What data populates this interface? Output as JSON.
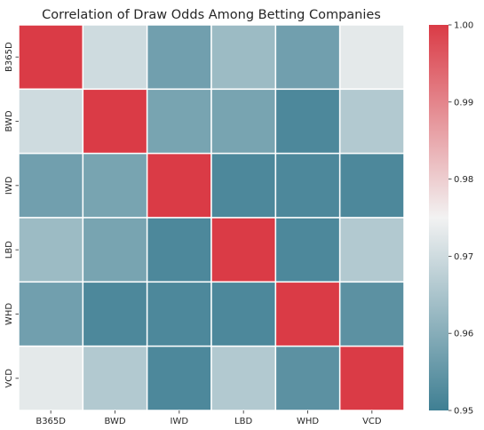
{
  "chart_data": {
    "type": "heatmap",
    "title": "Correlation of Draw Odds Among Betting Companies",
    "xlabel": "",
    "ylabel": "",
    "x_categories": [
      "B365D",
      "BWD",
      "IWD",
      "LBD",
      "WHD",
      "VCD"
    ],
    "y_categories": [
      "B365D",
      "BWD",
      "IWD",
      "LBD",
      "WHD",
      "VCD"
    ],
    "values": [
      [
        1.0,
        0.97,
        0.957,
        0.963,
        0.957,
        0.973
      ],
      [
        0.97,
        1.0,
        0.958,
        0.958,
        0.952,
        0.966
      ],
      [
        0.957,
        0.958,
        1.0,
        0.952,
        0.952,
        0.952
      ],
      [
        0.963,
        0.958,
        0.952,
        1.0,
        0.952,
        0.966
      ],
      [
        0.957,
        0.952,
        0.952,
        0.952,
        1.0,
        0.954
      ],
      [
        0.973,
        0.966,
        0.952,
        0.966,
        0.954,
        1.0
      ]
    ],
    "colorbar": {
      "vmin": 0.95,
      "vmax": 1.0,
      "ticks": [
        "0.95",
        "0.96",
        "0.97",
        "0.98",
        "0.99",
        "1.00"
      ]
    },
    "colors": {
      "low": "#3f7f93",
      "mid": "#f2f2f2",
      "high": "#da3b46",
      "gridline": "#ffffff"
    }
  }
}
